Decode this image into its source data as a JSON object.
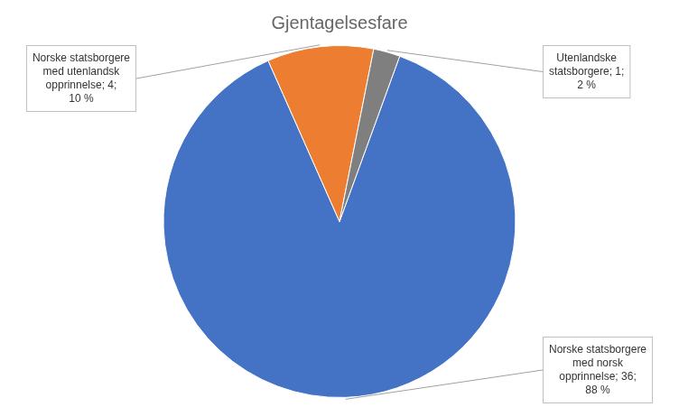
{
  "chart_data": {
    "type": "pie",
    "title": "Gjentagelsesfare",
    "categories": [
      "Norske statsborgere\nmed norsk\nopprinnelse; 36;\n88 %",
      "Norske statsborgere\nmed utenlandsk\nopprinnelse; 4;\n10 %",
      "Utenlandske\nstatsborgere; 1;\n2 %"
    ],
    "values": [
      36,
      4,
      1
    ],
    "colors": [
      "#4472C4",
      "#ED7D31",
      "#7F7F7F"
    ]
  }
}
